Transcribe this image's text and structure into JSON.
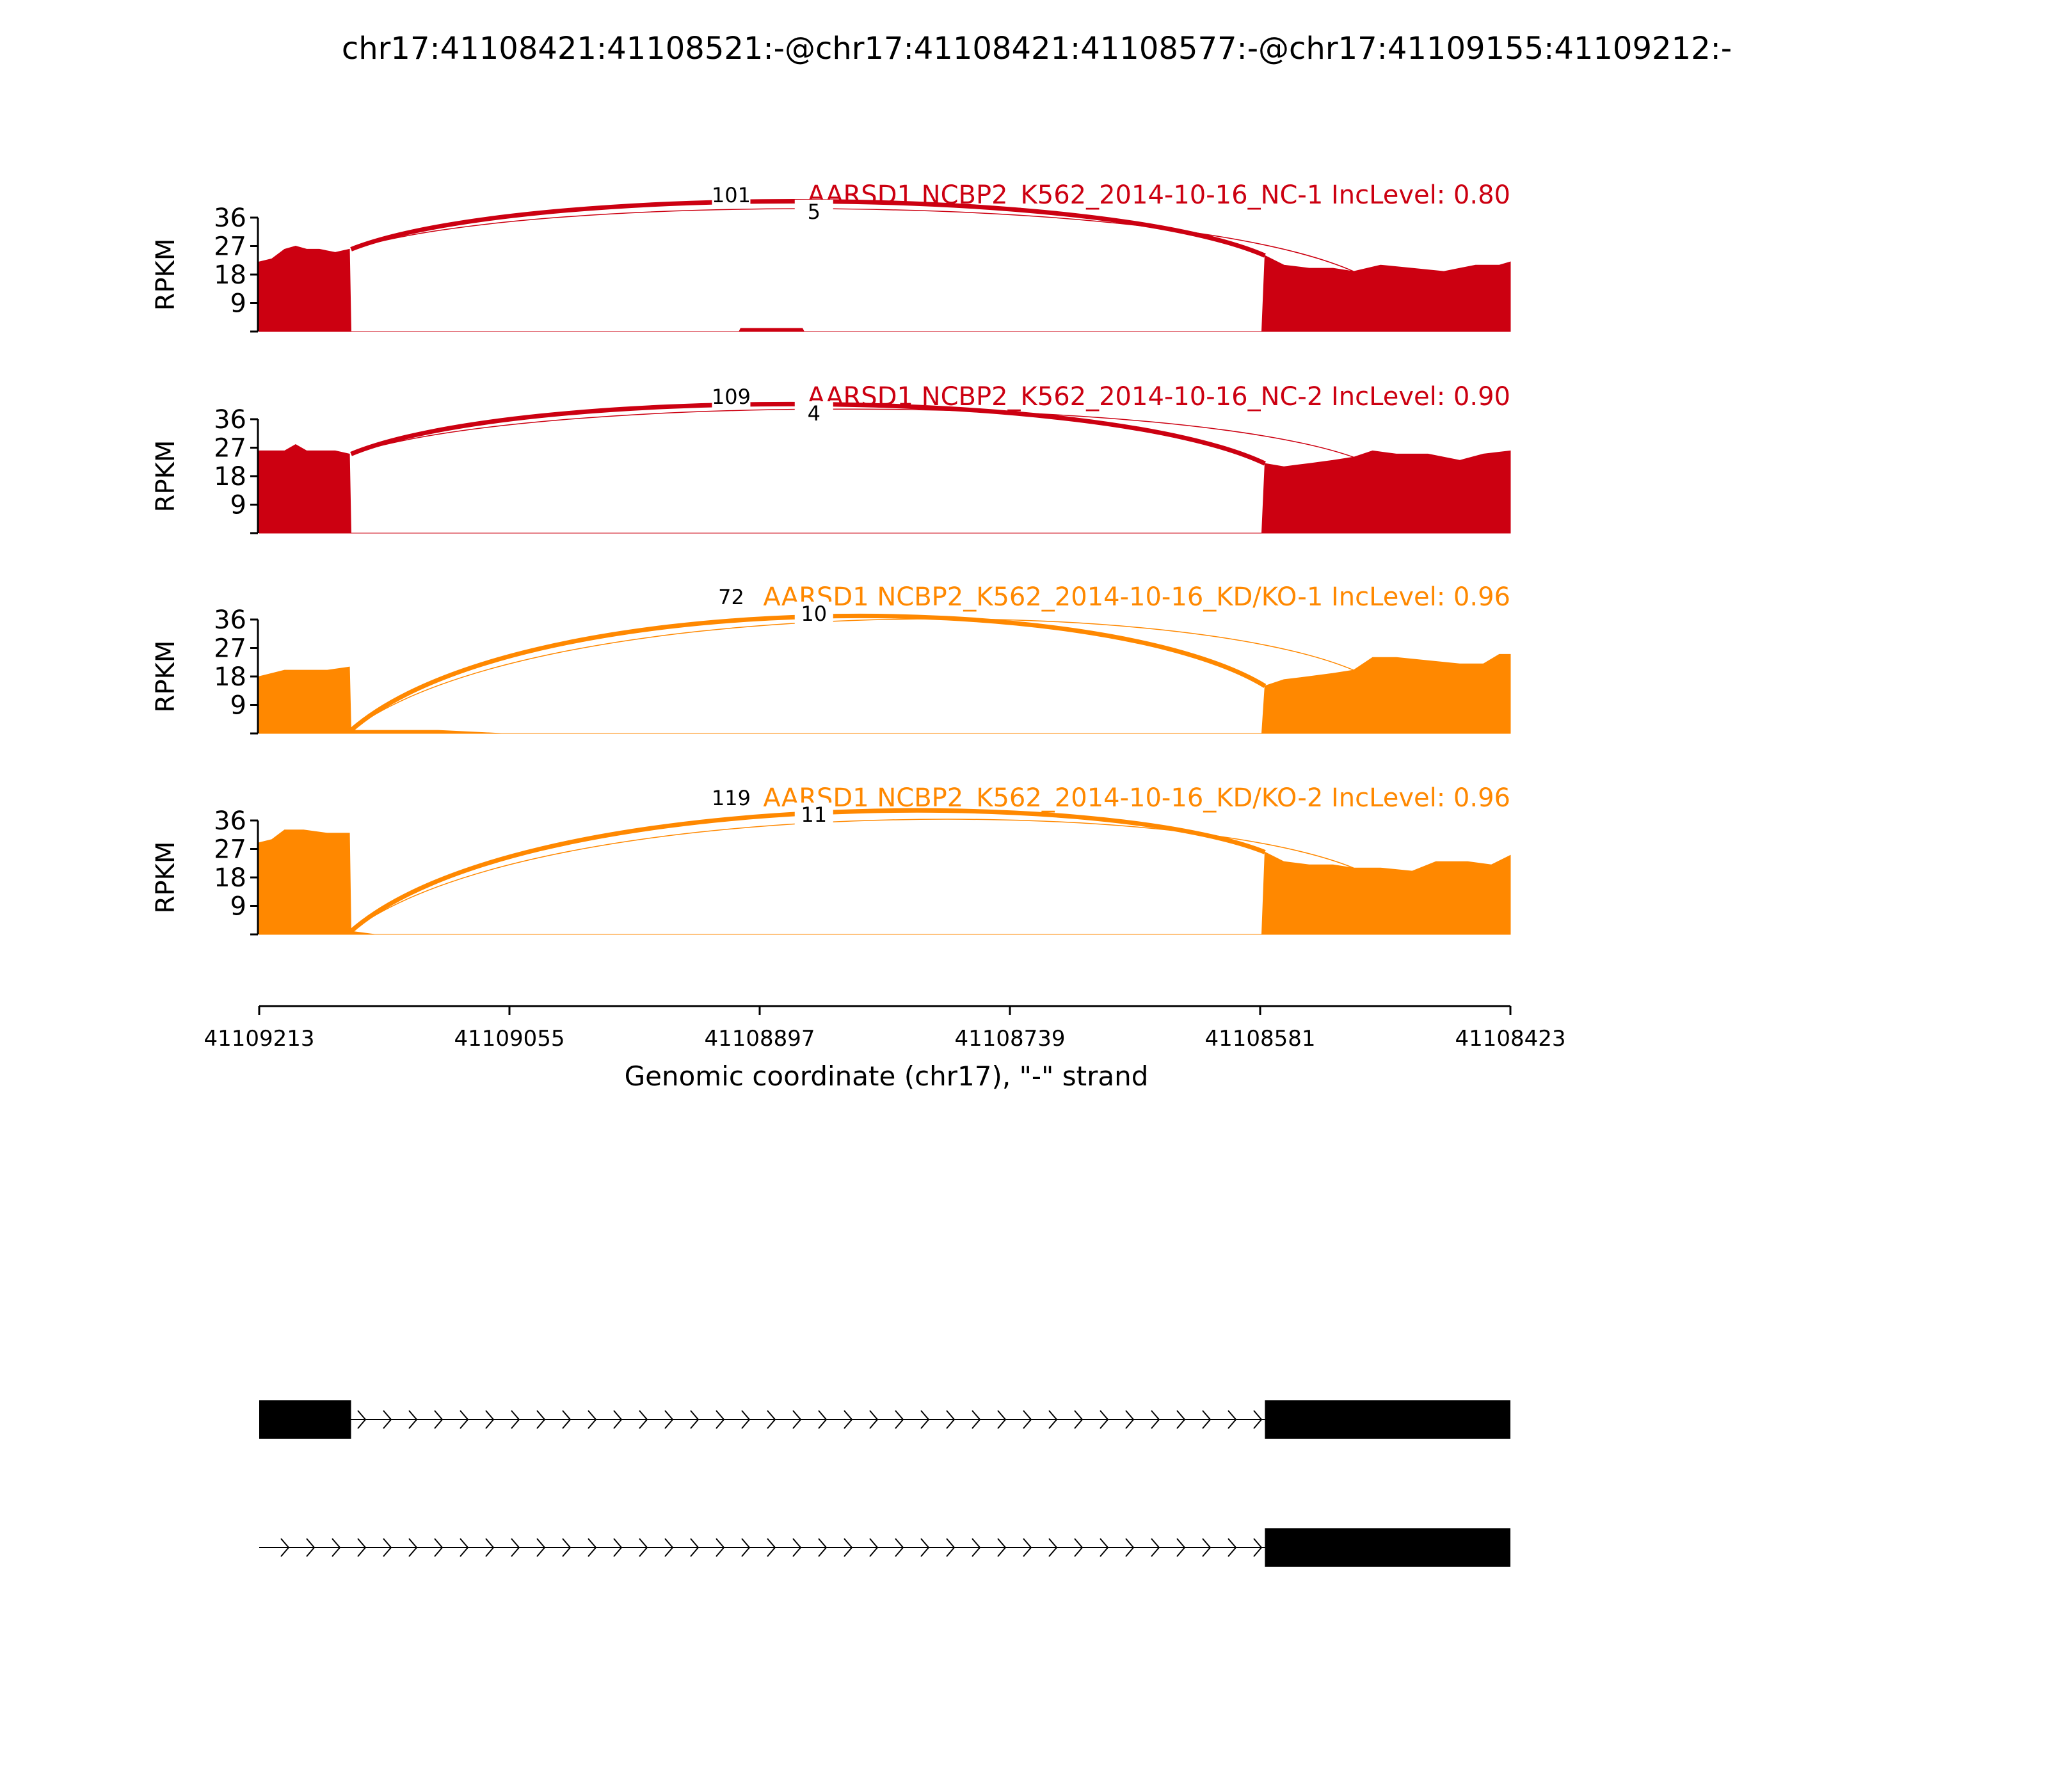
{
  "title": "chr17:41108421:41108521:-@chr17:41108421:41108577:-@chr17:41109155:41109212:-",
  "colors": {
    "nc": "#cc0011",
    "kd": "#ff8800",
    "axis": "#000000",
    "gene": "#000000"
  },
  "chart_data": {
    "type": "area",
    "xlabel": "Genomic coordinate (chr17), \"-\" strand",
    "ylabel": "RPKM",
    "xlim": [
      41109213,
      41108423
    ],
    "xticks": [
      41109213,
      41109055,
      41108897,
      41108739,
      41108581,
      41108423
    ],
    "ylim": [
      0,
      36
    ],
    "yticks": [
      9,
      18,
      27,
      36
    ],
    "tracks": [
      {
        "label": "AARSD1 NCBP2_K562_2014-10-16_NC-1 IncLevel: 0.80",
        "color_key": "nc",
        "coverage": [
          {
            "x": 41109213,
            "y": 22
          },
          {
            "x": 41109205,
            "y": 23
          },
          {
            "x": 41109197,
            "y": 26
          },
          {
            "x": 41109190,
            "y": 27
          },
          {
            "x": 41109183,
            "y": 26
          },
          {
            "x": 41109175,
            "y": 26
          },
          {
            "x": 41109165,
            "y": 25
          },
          {
            "x": 41109156,
            "y": 26
          },
          {
            "x": 41109155,
            "y": 0
          },
          {
            "x": 41108910,
            "y": 0
          },
          {
            "x": 41108909,
            "y": 1
          },
          {
            "x": 41108870,
            "y": 1
          },
          {
            "x": 41108869,
            "y": 0
          },
          {
            "x": 41108580,
            "y": 0
          },
          {
            "x": 41108578,
            "y": 24
          },
          {
            "x": 41108566,
            "y": 21
          },
          {
            "x": 41108550,
            "y": 20
          },
          {
            "x": 41108535,
            "y": 20
          },
          {
            "x": 41108522,
            "y": 19
          },
          {
            "x": 41108505,
            "y": 21
          },
          {
            "x": 41108485,
            "y": 20
          },
          {
            "x": 41108465,
            "y": 19
          },
          {
            "x": 41108445,
            "y": 21
          },
          {
            "x": 41108430,
            "y": 21
          },
          {
            "x": 41108423,
            "y": 22
          }
        ],
        "junctions": [
          {
            "start": 41109155,
            "end": 41108578,
            "reads": 101
          },
          {
            "start": 41109155,
            "end": 41108522,
            "reads": 5
          }
        ]
      },
      {
        "label": "AARSD1 NCBP2_K562_2014-10-16_NC-2 IncLevel: 0.90",
        "color_key": "nc",
        "coverage": [
          {
            "x": 41109213,
            "y": 26
          },
          {
            "x": 41109205,
            "y": 26
          },
          {
            "x": 41109197,
            "y": 26
          },
          {
            "x": 41109190,
            "y": 28
          },
          {
            "x": 41109183,
            "y": 26
          },
          {
            "x": 41109175,
            "y": 26
          },
          {
            "x": 41109165,
            "y": 26
          },
          {
            "x": 41109156,
            "y": 25
          },
          {
            "x": 41109155,
            "y": 0
          },
          {
            "x": 41108580,
            "y": 0
          },
          {
            "x": 41108578,
            "y": 22
          },
          {
            "x": 41108566,
            "y": 21
          },
          {
            "x": 41108550,
            "y": 22
          },
          {
            "x": 41108535,
            "y": 23
          },
          {
            "x": 41108522,
            "y": 24
          },
          {
            "x": 41108510,
            "y": 26
          },
          {
            "x": 41108495,
            "y": 25
          },
          {
            "x": 41108475,
            "y": 25
          },
          {
            "x": 41108455,
            "y": 23
          },
          {
            "x": 41108440,
            "y": 25
          },
          {
            "x": 41108423,
            "y": 26
          }
        ],
        "junctions": [
          {
            "start": 41109155,
            "end": 41108578,
            "reads": 109
          },
          {
            "start": 41109155,
            "end": 41108522,
            "reads": 4
          }
        ]
      },
      {
        "label": "AARSD1 NCBP2_K562_2014-10-16_KD/KO-1 IncLevel: 0.96",
        "color_key": "kd",
        "coverage": [
          {
            "x": 41109213,
            "y": 18
          },
          {
            "x": 41109205,
            "y": 19
          },
          {
            "x": 41109197,
            "y": 20
          },
          {
            "x": 41109185,
            "y": 20
          },
          {
            "x": 41109170,
            "y": 20
          },
          {
            "x": 41109156,
            "y": 21
          },
          {
            "x": 41109155,
            "y": 1
          },
          {
            "x": 41109100,
            "y": 1
          },
          {
            "x": 41109060,
            "y": 0
          },
          {
            "x": 41108580,
            "y": 0
          },
          {
            "x": 41108578,
            "y": 15
          },
          {
            "x": 41108566,
            "y": 17
          },
          {
            "x": 41108550,
            "y": 18
          },
          {
            "x": 41108535,
            "y": 19
          },
          {
            "x": 41108522,
            "y": 20
          },
          {
            "x": 41108510,
            "y": 24
          },
          {
            "x": 41108495,
            "y": 24
          },
          {
            "x": 41108475,
            "y": 23
          },
          {
            "x": 41108455,
            "y": 22
          },
          {
            "x": 41108440,
            "y": 22
          },
          {
            "x": 41108430,
            "y": 25
          },
          {
            "x": 41108423,
            "y": 25
          }
        ],
        "junctions": [
          {
            "start": 41109155,
            "end": 41108578,
            "reads": 72
          },
          {
            "start": 41109155,
            "end": 41108522,
            "reads": 10
          }
        ]
      },
      {
        "label": "AARSD1 NCBP2_K562_2014-10-16_KD/KO-2 IncLevel: 0.96",
        "color_key": "kd",
        "coverage": [
          {
            "x": 41109213,
            "y": 29
          },
          {
            "x": 41109205,
            "y": 30
          },
          {
            "x": 41109197,
            "y": 33
          },
          {
            "x": 41109185,
            "y": 33
          },
          {
            "x": 41109170,
            "y": 32
          },
          {
            "x": 41109156,
            "y": 32
          },
          {
            "x": 41109155,
            "y": 1
          },
          {
            "x": 41109140,
            "y": 0
          },
          {
            "x": 41108580,
            "y": 0
          },
          {
            "x": 41108578,
            "y": 26
          },
          {
            "x": 41108566,
            "y": 23
          },
          {
            "x": 41108550,
            "y": 22
          },
          {
            "x": 41108535,
            "y": 22
          },
          {
            "x": 41108522,
            "y": 21
          },
          {
            "x": 41108505,
            "y": 21
          },
          {
            "x": 41108485,
            "y": 20
          },
          {
            "x": 41108470,
            "y": 23
          },
          {
            "x": 41108450,
            "y": 23
          },
          {
            "x": 41108435,
            "y": 22
          },
          {
            "x": 41108423,
            "y": 25
          }
        ],
        "junctions": [
          {
            "start": 41109155,
            "end": 41108578,
            "reads": 119
          },
          {
            "start": 41109155,
            "end": 41108522,
            "reads": 11
          }
        ]
      }
    ],
    "isoforms": [
      {
        "exons": [
          [
            41109213,
            41109155
          ],
          [
            41108578,
            41108423
          ]
        ]
      },
      {
        "exons": [
          [
            41108578,
            41108423
          ]
        ]
      }
    ]
  }
}
